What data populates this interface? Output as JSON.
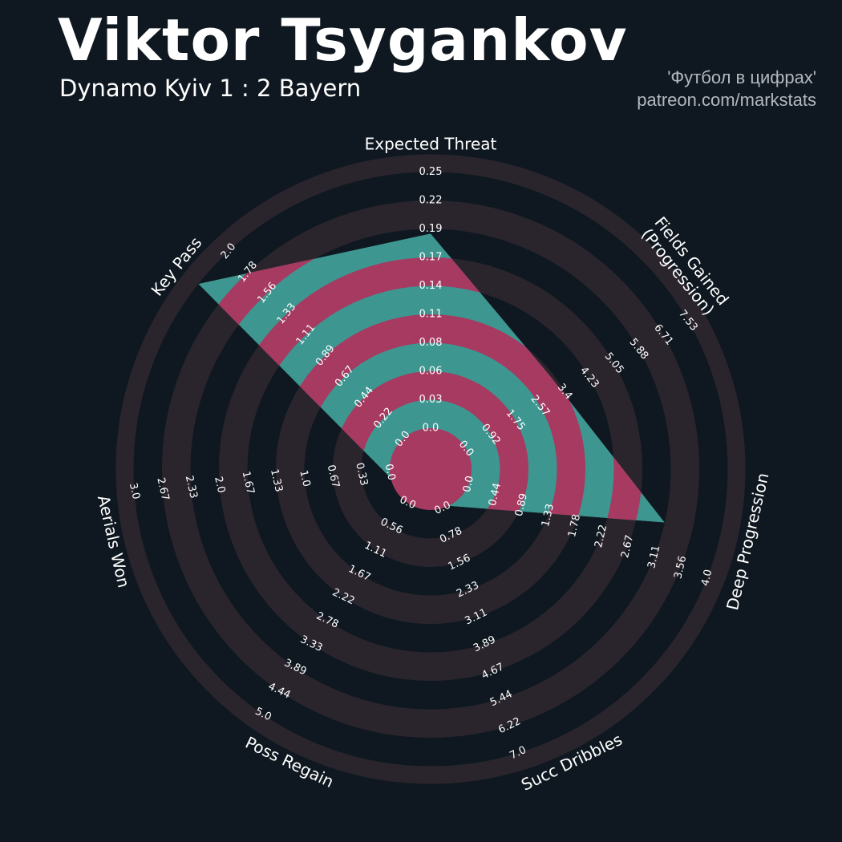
{
  "header": {
    "player": "Viktor Tsygankov",
    "match": "Dynamo Kyiv 1 : 2 Bayern",
    "source_name": "'Футбол в цифрах'",
    "source_url": "patreon.com/markstats"
  },
  "colors": {
    "background": "#0f1820",
    "ring": "#2a252d",
    "fill_teal": "#3e9690",
    "fill_magenta": "#a63a60",
    "text": "#ffffff"
  },
  "chart_data": {
    "type": "radar",
    "title": "Viktor Tsygankov",
    "subtitle": "Dynamo Kyiv 1 : 2 Bayern",
    "axes": [
      {
        "name": "Expected Threat",
        "lines": [
          "Expected Threat"
        ],
        "min": 0.0,
        "max": 0.25,
        "value": 0.19,
        "ticks": [
          "0.0",
          "0.03",
          "0.06",
          "0.08",
          "0.11",
          "0.14",
          "0.17",
          "0.19",
          "0.22",
          "0.25"
        ]
      },
      {
        "name": "Fields Gained (Progression)",
        "lines": [
          "Fields Gained",
          "(Progression)"
        ],
        "min": 0.0,
        "max": 7.53,
        "value": 3.25,
        "ticks": [
          "0.0",
          "0.92",
          "1.75",
          "2.57",
          "3.4",
          "4.23",
          "5.05",
          "5.88",
          "6.71",
          "7.53"
        ]
      },
      {
        "name": "Deep Progression",
        "lines": [
          "Deep Progression"
        ],
        "min": 0.0,
        "max": 4.0,
        "value": 3.11,
        "ticks": [
          "0.0",
          "0.44",
          "0.89",
          "1.33",
          "1.78",
          "2.22",
          "2.67",
          "3.11",
          "3.56",
          "4.0"
        ]
      },
      {
        "name": "Succ Dribbles",
        "lines": [
          "Succ Dribbles"
        ],
        "min": 0.0,
        "max": 7.0,
        "value": 0.0,
        "ticks": [
          "0.0",
          "0.78",
          "1.56",
          "2.33",
          "3.11",
          "3.89",
          "4.67",
          "5.44",
          "6.22",
          "7.0"
        ]
      },
      {
        "name": "Poss Regain",
        "lines": [
          "Poss Regain"
        ],
        "min": 0.0,
        "max": 5.0,
        "value": 0.0,
        "ticks": [
          "0.0",
          "0.56",
          "1.11",
          "1.67",
          "2.22",
          "2.78",
          "3.33",
          "3.89",
          "4.44",
          "5.0"
        ]
      },
      {
        "name": "Aerials Won",
        "lines": [
          "Aerials Won"
        ],
        "min": 0.0,
        "max": 3.0,
        "value": 0.0,
        "ticks": [
          "0.0",
          "0.33",
          "0.67",
          "1.0",
          "1.33",
          "1.67",
          "2.0",
          "2.33",
          "2.67",
          "3.0"
        ]
      },
      {
        "name": "Key Pass",
        "lines": [
          "Key Pass"
        ],
        "min": 0.0,
        "max": 2.0,
        "value": 2.0,
        "ticks": [
          "0.0",
          "0.22",
          "0.44",
          "0.67",
          "0.89",
          "1.11",
          "1.33",
          "1.56",
          "1.78",
          "2.0"
        ]
      }
    ]
  }
}
